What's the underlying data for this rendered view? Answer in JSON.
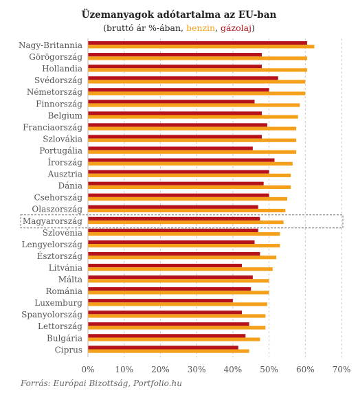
{
  "title": "Üzemanyagok adótartalma az EU-ban",
  "subtitle": {
    "prefix": "(bruttó ár %-ában, ",
    "benzin": "benzin",
    "sep": ", ",
    "gazolaj": "gázolaj",
    "suffix": ")"
  },
  "source": "Forrás: Európai Bizottság, Portfolio.hu",
  "colors": {
    "benzin": "#f5a01a",
    "gazolaj": "#b5121b",
    "grid": "#c8c8c8",
    "label": "#555555"
  },
  "chart_data": {
    "type": "bar",
    "orientation": "horizontal",
    "categories": [
      "Nagy-Britannia",
      "Görögország",
      "Hollandia",
      "Svédország",
      "Németország",
      "Finnország",
      "Belgium",
      "Franciaország",
      "Szlovákia",
      "Portugália",
      "Írország",
      "Ausztria",
      "Dánia",
      "Csehország",
      "Olaszország",
      "Magyarország",
      "Szlovénia",
      "Lengyelország",
      "Észtország",
      "Litvánia",
      "Málta",
      "Románia",
      "Luxemburg",
      "Spanyolország",
      "Lettország",
      "Bulgária",
      "Ciprus"
    ],
    "series": [
      {
        "name": "gázolaj",
        "values": [
          60.5,
          48,
          48,
          52.5,
          50,
          46,
          48,
          49.5,
          48,
          45.5,
          51.5,
          50,
          48.5,
          50,
          47,
          47.5,
          47,
          46,
          47.5,
          42.5,
          45.5,
          45,
          40,
          42.5,
          44.5,
          43.5,
          41.5
        ]
      },
      {
        "name": "benzin",
        "values": [
          62.5,
          60.5,
          60.5,
          60,
          60,
          58.5,
          58,
          57.5,
          57.5,
          57.5,
          56.5,
          56,
          56,
          55,
          54.5,
          54,
          53,
          53,
          52,
          51,
          50,
          50,
          49.5,
          49,
          49,
          47.5,
          44.5
        ]
      }
    ],
    "xlim": [
      0,
      70
    ],
    "xticks": [
      "0%",
      "10%",
      "20%",
      "30%",
      "40%",
      "50%",
      "60%",
      "70%"
    ],
    "grid": true,
    "highlight": "Magyarország"
  }
}
